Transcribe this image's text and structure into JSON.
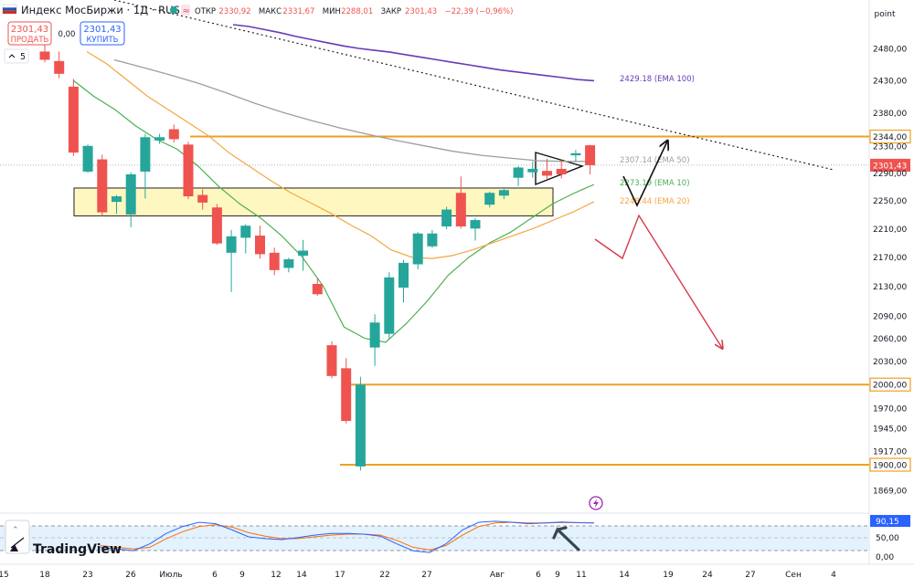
{
  "header": {
    "symbol": "Индекс МосБиржи · 1Д · RUS",
    "ohlc": [
      {
        "label": "ОТКР",
        "value": "2330,92"
      },
      {
        "label": "МАКС",
        "value": "2331,67"
      },
      {
        "label": "МИН",
        "value": "2288,01"
      },
      {
        "label": "ЗАКР",
        "value": "2301,43"
      }
    ],
    "change": "−22,39 (−0,96%)",
    "sell": {
      "price": "2301,43",
      "label": "ПРОДАТЬ"
    },
    "spread": "0,00",
    "buy": {
      "price": "2301,43",
      "label": "КУПИТЬ"
    },
    "indicators_count": "5",
    "scale_mode": "point"
  },
  "logo": "TradingView",
  "colors": {
    "up": "#26a69a",
    "down": "#ef5350",
    "ema10": "#4caf50",
    "ema20": "#f4a640",
    "ema50": "#9e9e9e",
    "ema100": "#673ab7",
    "level": "#f0a020",
    "box_fill": "#fff7c0",
    "arrow": "#d63a4a",
    "stoch_k": "#2962ff",
    "stoch_d": "#ff6d00"
  },
  "chart_data": {
    "type": "candlestick",
    "y_axis": {
      "min": 1850,
      "max": 2520,
      "scale": "log",
      "ticks": [
        "2480,00",
        "2430,00",
        "2380,00",
        "2330,00",
        "2290,00",
        "2250,00",
        "2210,00",
        "2170,00",
        "2130,00",
        "2090,00",
        "2060,00",
        "2030,00",
        "1970,00",
        "1945,00",
        "1917,00",
        "1869,00"
      ]
    },
    "x_axis": {
      "ticks": [
        "15",
        "18",
        "23",
        "26",
        "Июль",
        "6",
        "9",
        "12",
        "14",
        "17",
        "22",
        "27",
        "Авг",
        "6",
        "9",
        "11",
        "14",
        "19",
        "24",
        "27",
        "Сен",
        "4"
      ]
    },
    "candles": [
      {
        "o": 2475,
        "h": 2487,
        "l": 2458,
        "c": 2462
      },
      {
        "o": 2460,
        "h": 2475,
        "l": 2433,
        "c": 2440
      },
      {
        "o": 2420,
        "h": 2432,
        "l": 2315,
        "c": 2320
      },
      {
        "o": 2292,
        "h": 2332,
        "l": 2290,
        "c": 2330
      },
      {
        "o": 2310,
        "h": 2317,
        "l": 2228,
        "c": 2233
      },
      {
        "o": 2248,
        "h": 2258,
        "l": 2231,
        "c": 2256
      },
      {
        "o": 2230,
        "h": 2291,
        "l": 2212,
        "c": 2288
      },
      {
        "o": 2292,
        "h": 2348,
        "l": 2253,
        "c": 2343
      },
      {
        "o": 2338,
        "h": 2348,
        "l": 2333,
        "c": 2343
      },
      {
        "o": 2355,
        "h": 2362,
        "l": 2335,
        "c": 2340
      },
      {
        "o": 2332,
        "h": 2336,
        "l": 2252,
        "c": 2256
      },
      {
        "o": 2258,
        "h": 2266,
        "l": 2237,
        "c": 2247
      },
      {
        "o": 2240,
        "h": 2245,
        "l": 2187,
        "c": 2189
      },
      {
        "o": 2176,
        "h": 2208,
        "l": 2122,
        "c": 2199
      },
      {
        "o": 2197,
        "h": 2216,
        "l": 2175,
        "c": 2214
      },
      {
        "o": 2200,
        "h": 2214,
        "l": 2168,
        "c": 2174
      },
      {
        "o": 2176,
        "h": 2183,
        "l": 2145,
        "c": 2152
      },
      {
        "o": 2155,
        "h": 2169,
        "l": 2149,
        "c": 2167
      },
      {
        "o": 2172,
        "h": 2194,
        "l": 2151,
        "c": 2179
      },
      {
        "o": 2133,
        "h": 2141,
        "l": 2117,
        "c": 2119
      },
      {
        "o": 2051,
        "h": 2056,
        "l": 2008,
        "c": 2011
      },
      {
        "o": 2021,
        "h": 2034,
        "l": 1951,
        "c": 1954
      },
      {
        "o": 1898,
        "h": 2010,
        "l": 1893,
        "c": 2000
      },
      {
        "o": 2048,
        "h": 2092,
        "l": 2024,
        "c": 2081
      },
      {
        "o": 2066,
        "h": 2149,
        "l": 2059,
        "c": 2142
      },
      {
        "o": 2128,
        "h": 2166,
        "l": 2108,
        "c": 2162
      },
      {
        "o": 2160,
        "h": 2205,
        "l": 2153,
        "c": 2203
      },
      {
        "o": 2185,
        "h": 2208,
        "l": 2183,
        "c": 2203
      },
      {
        "o": 2213,
        "h": 2241,
        "l": 2209,
        "c": 2237
      },
      {
        "o": 2261,
        "h": 2285,
        "l": 2210,
        "c": 2213
      },
      {
        "o": 2210,
        "h": 2225,
        "l": 2193,
        "c": 2222
      },
      {
        "o": 2244,
        "h": 2263,
        "l": 2240,
        "c": 2261
      },
      {
        "o": 2257,
        "h": 2268,
        "l": 2252,
        "c": 2265
      },
      {
        "o": 2283,
        "h": 2300,
        "l": 2271,
        "c": 2298
      },
      {
        "o": 2291,
        "h": 2307,
        "l": 2283,
        "c": 2296
      },
      {
        "o": 2293,
        "h": 2311,
        "l": 2280,
        "c": 2286
      },
      {
        "o": 2296,
        "h": 2309,
        "l": 2282,
        "c": 2288
      },
      {
        "o": 2316,
        "h": 2324,
        "l": 2306,
        "c": 2319
      },
      {
        "o": 2330.92,
        "h": 2331.67,
        "l": 2288.01,
        "c": 2301.43
      }
    ],
    "series": [
      {
        "name": "EMA 100",
        "label_value": "2429,18",
        "label": "2429.18 (EMA 100)",
        "values": [
          2518,
          2515,
          2510,
          2505,
          2499,
          2494,
          2489,
          2484,
          2480,
          2477,
          2474,
          2470,
          2466,
          2462,
          2458,
          2454,
          2450,
          2446,
          2443,
          2440,
          2437,
          2434,
          2431,
          2429.18
        ]
      },
      {
        "name": "EMA 50",
        "label_value": "2307,14",
        "label": "2307.14 (EMA 50)",
        "values": [
          2462,
          2450,
          2438,
          2425,
          2410,
          2394,
          2380,
          2368,
          2357,
          2347,
          2338,
          2330,
          2322,
          2316,
          2312,
          2308,
          2307,
          2307.14
        ]
      },
      {
        "name": "EMA 10",
        "label_value": "2273,19",
        "label": "2273.19 (EMA 10)",
        "values": [
          2430,
          2405,
          2385,
          2360,
          2340,
          2325,
          2300,
          2270,
          2245,
          2225,
          2200,
          2170,
          2130,
          2075,
          2060,
          2055,
          2080,
          2110,
          2145,
          2170,
          2190,
          2205,
          2225,
          2245,
          2260,
          2273.19
        ]
      },
      {
        "name": "EMA 20",
        "label_value": "2248,44",
        "label": "2248.44 (EMA 20)",
        "values": [
          2475,
          2455,
          2430,
          2405,
          2385,
          2365,
          2345,
          2320,
          2300,
          2280,
          2262,
          2247,
          2232,
          2215,
          2200,
          2180,
          2170,
          2168,
          2172,
          2180,
          2190,
          2200,
          2210,
          2222,
          2234,
          2248.44
        ]
      }
    ],
    "levels": [
      {
        "value": 2344,
        "label": "2344,00"
      },
      {
        "value": 2000,
        "label": "2000,00"
      },
      {
        "value": 1900,
        "label": "1900,00"
      }
    ],
    "last_price": {
      "value": 2301.43,
      "label": "2301,43"
    },
    "zone": {
      "low": 2228,
      "high": 2268
    },
    "stochastic": {
      "ticks": [
        "50,00",
        "0,00"
      ],
      "last_label": "90,15",
      "k": [
        20,
        15,
        10,
        30,
        60,
        80,
        92,
        88,
        70,
        50,
        45,
        42,
        48,
        55,
        60,
        60,
        58,
        52,
        30,
        10,
        5,
        30,
        70,
        92,
        95,
        92,
        88,
        90,
        93,
        91,
        90.15
      ],
      "d": [
        25,
        20,
        15,
        20,
        45,
        65,
        80,
        85,
        78,
        62,
        52,
        45,
        45,
        50,
        55,
        58,
        58,
        55,
        40,
        20,
        12,
        25,
        55,
        80,
        90,
        92,
        90,
        90,
        91,
        91,
        90.15
      ]
    }
  }
}
